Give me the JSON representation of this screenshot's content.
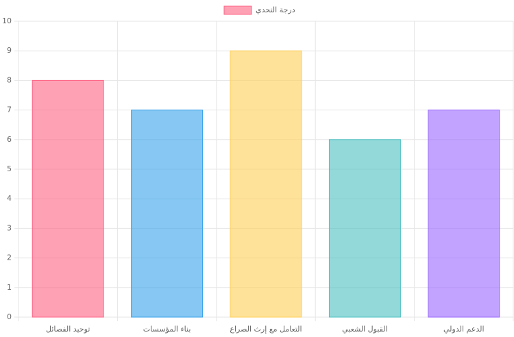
{
  "chart_data": {
    "type": "bar",
    "categories": [
      "توحيد الفصائل",
      "بناء المؤسسات",
      "التعامل مع إرث الصراع",
      "القبول الشعبي",
      "الدعم الدولي"
    ],
    "series": [
      {
        "name": "درجة التحدي",
        "colors": [
          "rgba(255,99,132,0.6)",
          "rgba(54,162,235,0.6)",
          "rgba(255,206,86,0.6)",
          "rgba(75,192,192,0.6)",
          "rgba(153,102,255,0.6)"
        ],
        "border_colors": [
          "rgb(255,99,132)",
          "rgb(54,162,235)",
          "rgb(255,206,86)",
          "rgb(75,192,192)",
          "rgb(153,102,255)"
        ],
        "values": [
          8,
          7,
          9,
          6,
          7
        ]
      }
    ],
    "ylim": [
      0,
      10
    ],
    "yticks": [
      0,
      1,
      2,
      3,
      4,
      5,
      6,
      7,
      8,
      9,
      10
    ],
    "grid": true,
    "legend": "top"
  }
}
